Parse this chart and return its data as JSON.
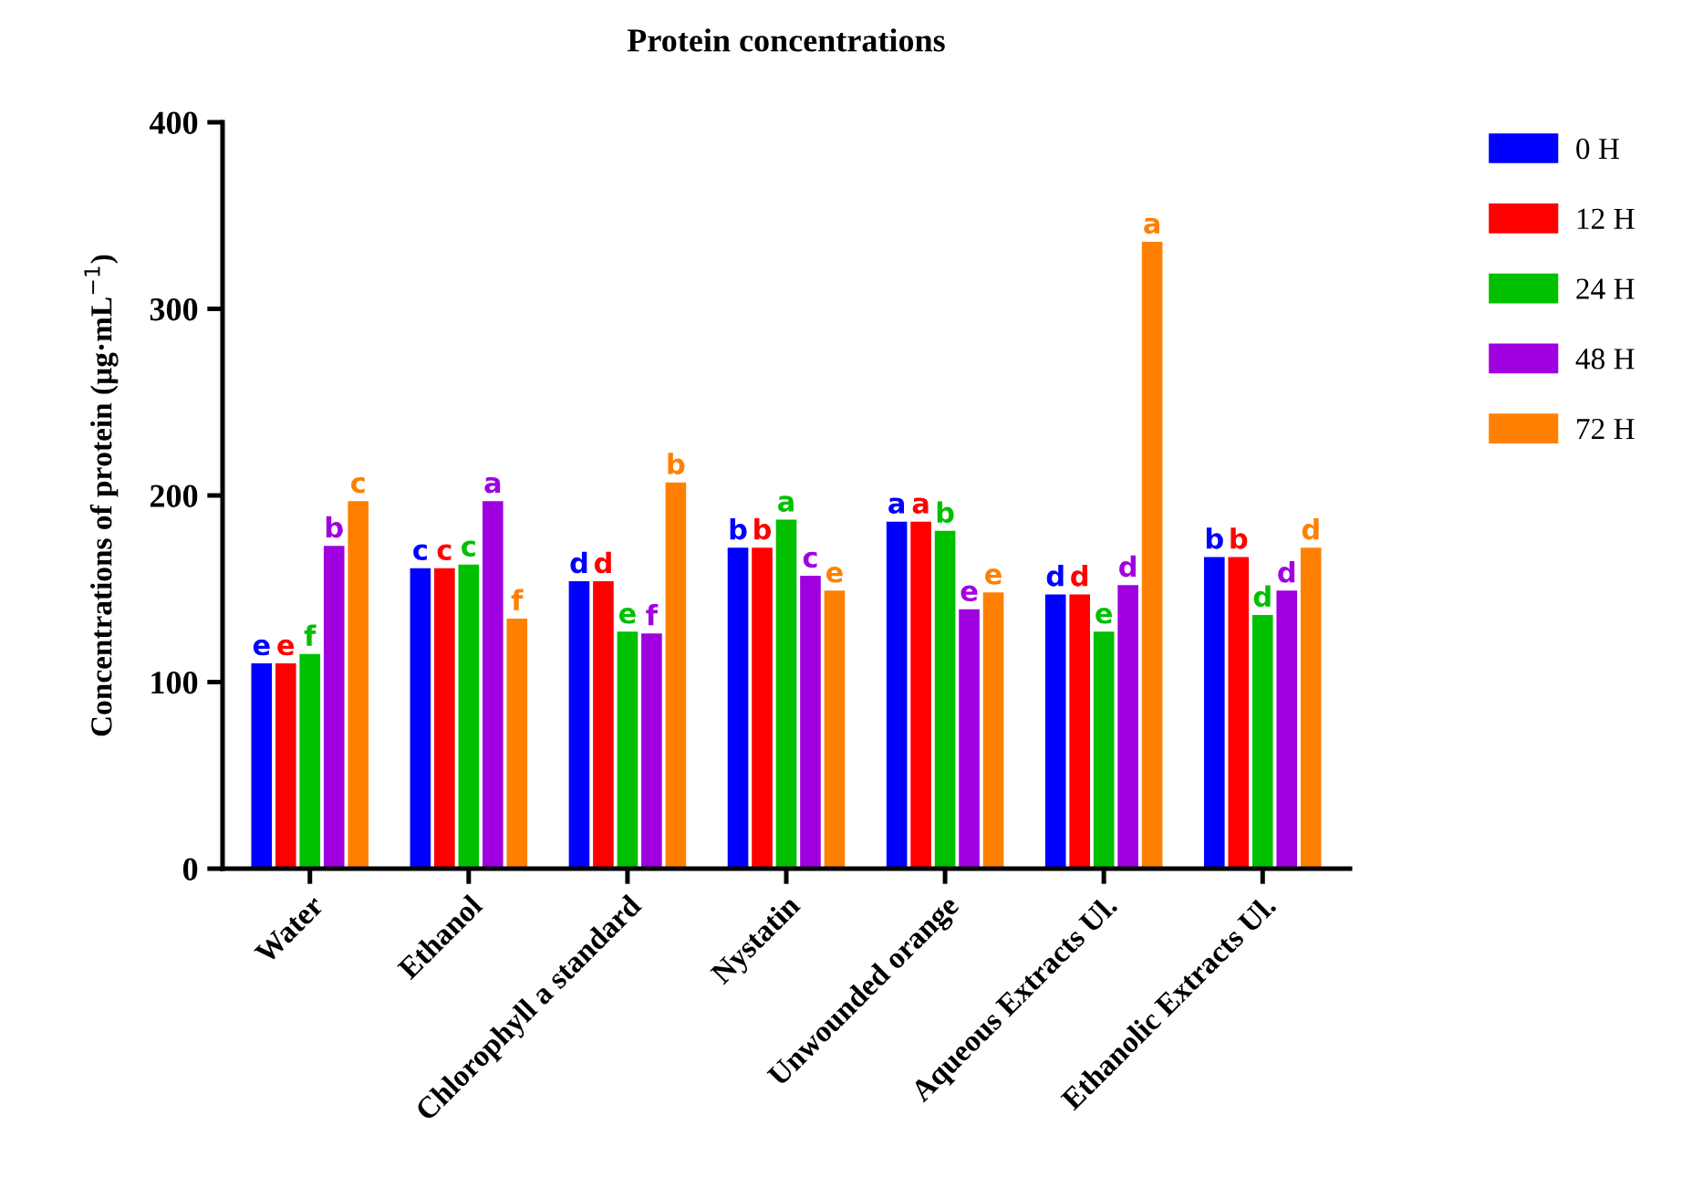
{
  "chart_data": {
    "type": "bar",
    "title": "Protein concentrations",
    "ylabel": "Concentrations of protein (µg·mL$^{−1}$)",
    "categories": [
      "Water",
      "Ethanol",
      "Chlorophyll a standard",
      "Nystatin",
      "Unwounded orange",
      "Aqueous Extracts Ul.",
      "Ethanolic Extracts Ul."
    ],
    "series": [
      {
        "name": "0 H",
        "color": "#0000ff",
        "values": [
          110,
          161,
          154,
          172,
          186,
          147,
          167
        ],
        "value_labels": [
          "e",
          "c",
          "d",
          "b",
          "a",
          "d",
          "b"
        ]
      },
      {
        "name": "12 H",
        "color": "#ff0000",
        "values": [
          110,
          161,
          154,
          172,
          186,
          147,
          167
        ],
        "value_labels": [
          "e",
          "c",
          "d",
          "b",
          "a",
          "d",
          "b"
        ]
      },
      {
        "name": "24 H",
        "color": "#00c000",
        "values": [
          115,
          163,
          127,
          187,
          181,
          127,
          136
        ],
        "value_labels": [
          "f",
          "c",
          "e",
          "a",
          "b",
          "e",
          "d"
        ]
      },
      {
        "name": "48 H",
        "color": "#a000e0",
        "values": [
          173,
          197,
          126,
          157,
          139,
          152,
          149
        ],
        "value_labels": [
          "b",
          "a",
          "f",
          "c",
          "e",
          "d",
          "d"
        ]
      },
      {
        "name": "72 H",
        "color": "#ff8000",
        "values": [
          197,
          134,
          207,
          149,
          148,
          336,
          172
        ],
        "value_labels": [
          "c",
          "f",
          "b",
          "e",
          "e",
          "a",
          "d"
        ]
      }
    ],
    "ylim": [
      0,
      400
    ],
    "yticks": [
      0,
      100,
      200,
      300,
      400
    ],
    "grid": false,
    "legend": "top right"
  }
}
